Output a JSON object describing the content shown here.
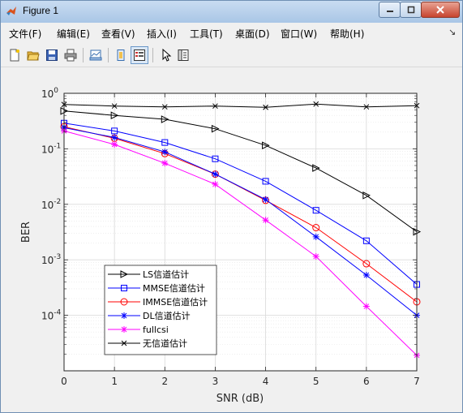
{
  "window": {
    "title": "Figure 1"
  },
  "menu": [
    "文件(F)",
    "编辑(E)",
    "查看(V)",
    "插入(I)",
    "工具(T)",
    "桌面(D)",
    "窗口(W)",
    "帮助(H)"
  ],
  "toolbar": {
    "buttons": [
      "new-figure-icon",
      "open-file-icon",
      "save-icon",
      "print-icon",
      "link-plot-icon",
      "hide-plot-tools-icon",
      "show-plot-tools-icon",
      "edit-plot-arrow-icon",
      "property-inspector-icon"
    ]
  },
  "chart_data": {
    "type": "line",
    "title": "",
    "xlabel": "SNR (dB)",
    "ylabel": "BER",
    "xlim": [
      0,
      7
    ],
    "ylim": [
      1e-05,
      1
    ],
    "yscale": "log",
    "grid": true,
    "x_ticks": [
      "0",
      "1",
      "2",
      "3",
      "4",
      "5",
      "6",
      "7"
    ],
    "y_ticks": [
      {
        "value": 1,
        "base": "10",
        "exp": "0"
      },
      {
        "value": 0.1,
        "base": "10",
        "exp": "-1"
      },
      {
        "value": 0.01,
        "base": "10",
        "exp": "-2"
      },
      {
        "value": 0.001,
        "base": "10",
        "exp": "-3"
      },
      {
        "value": 0.0001,
        "base": "10",
        "exp": "-4"
      }
    ],
    "legend_position": "bottom-left",
    "x": [
      0,
      1,
      2,
      3,
      4,
      5,
      6,
      7
    ],
    "series": [
      {
        "name": "LS信道估计",
        "color": "#000000",
        "marker": "triangle-right",
        "values": [
          0.48,
          0.4,
          0.34,
          0.23,
          0.115,
          0.045,
          0.0145,
          0.0032
        ]
      },
      {
        "name": "MMSE信道估计",
        "color": "#0000ff",
        "marker": "square",
        "values": [
          0.29,
          0.21,
          0.13,
          0.066,
          0.026,
          0.0078,
          0.0022,
          0.00036
        ]
      },
      {
        "name": "IMMSE信道估计",
        "color": "#ff0000",
        "marker": "circle",
        "values": [
          0.25,
          0.155,
          0.082,
          0.035,
          0.0118,
          0.0038,
          0.00085,
          0.000175
        ]
      },
      {
        "name": "DL信道估计",
        "color": "#0000ff",
        "marker": "star",
        "values": [
          0.24,
          0.16,
          0.088,
          0.035,
          0.0122,
          0.0026,
          0.00053,
          0.0001
        ]
      },
      {
        "name": "fullcsi",
        "color": "#ff00ff",
        "marker": "star",
        "values": [
          0.21,
          0.12,
          0.055,
          0.023,
          0.0052,
          0.00115,
          0.000145,
          1.9e-05
        ]
      },
      {
        "name": "无信道估计",
        "color": "#000000",
        "marker": "x",
        "values": [
          0.63,
          0.59,
          0.57,
          0.59,
          0.56,
          0.64,
          0.57,
          0.6
        ]
      }
    ]
  }
}
